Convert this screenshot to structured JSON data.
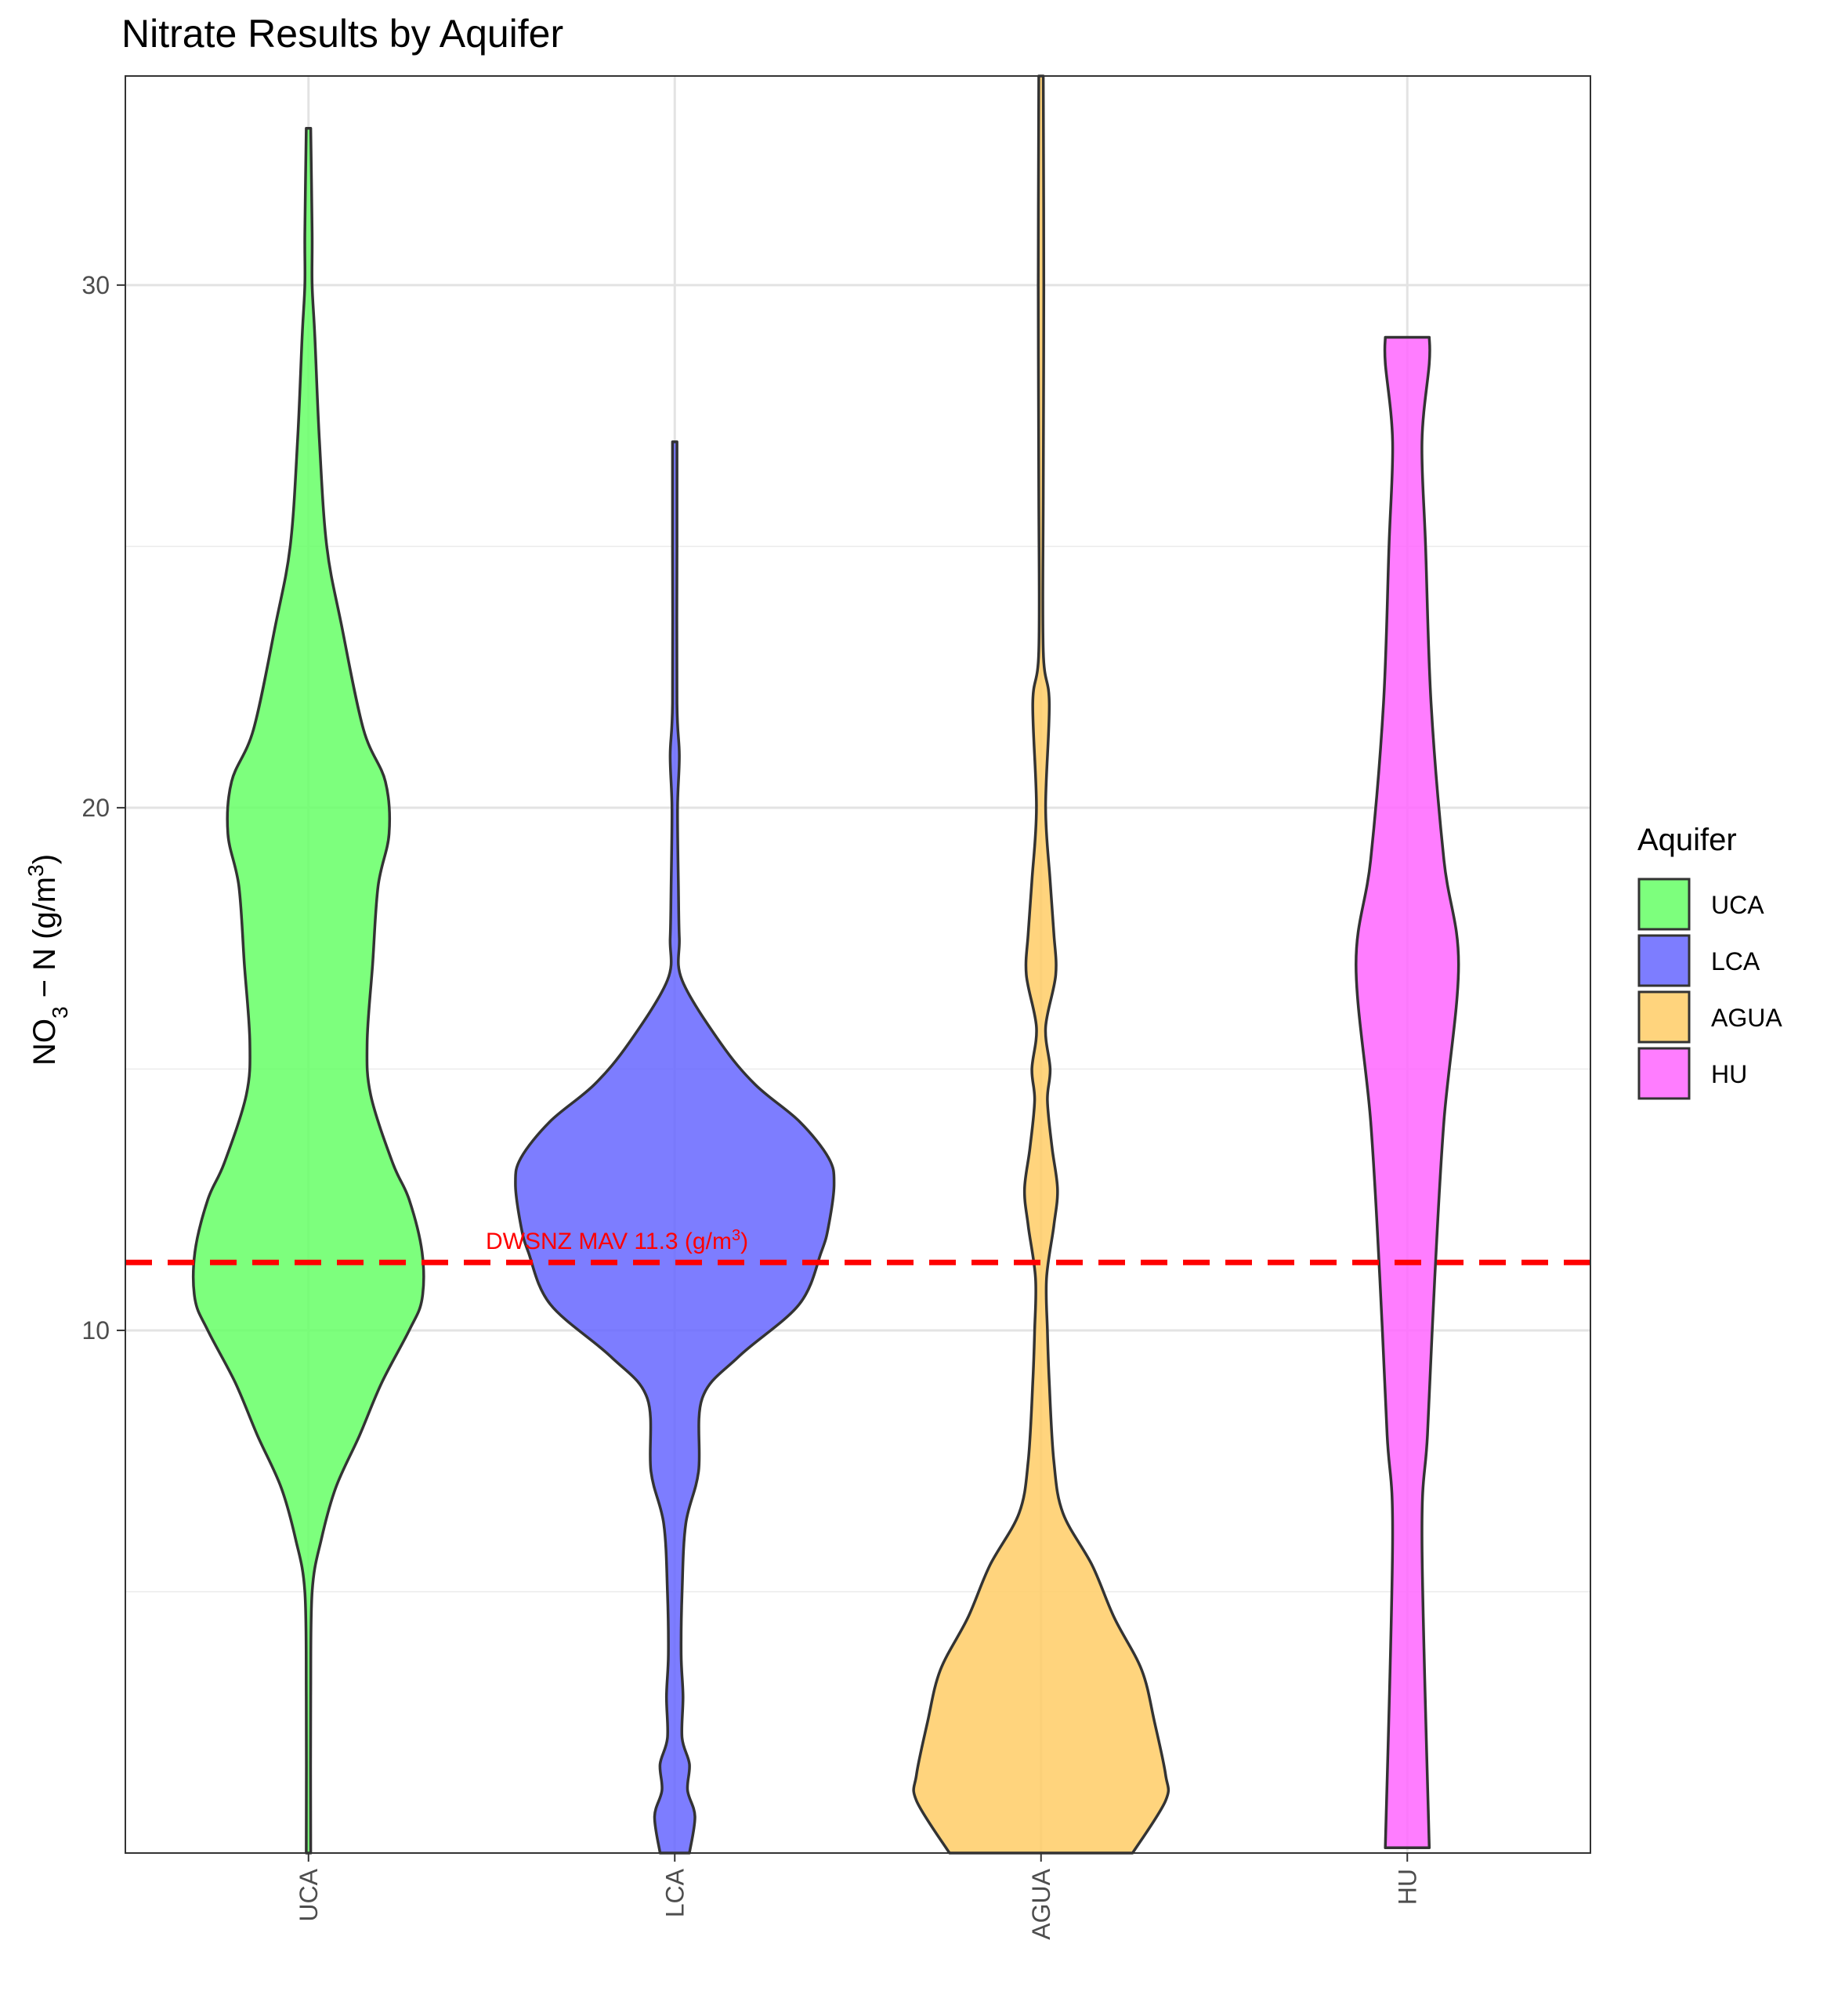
{
  "chart_data": {
    "type": "violin",
    "title": "Nitrate Results by Aquifer",
    "xlabel": "",
    "ylabel_main": "NO",
    "ylabel_sub": "3",
    "ylabel_mid": " − N (g/m",
    "ylabel_sup": "3",
    "ylabel_end": ")",
    "ylim": [
      0,
      34
    ],
    "yticks": [
      10,
      20,
      30
    ],
    "grid": true,
    "categories": [
      "UCA",
      "LCA",
      "AGUA",
      "HU"
    ],
    "series": [
      {
        "name": "UCA",
        "color": "#66ff66",
        "profile": [
          [
            0,
            0.012
          ],
          [
            3,
            0.012
          ],
          [
            5,
            0.02
          ],
          [
            6,
            0.07
          ],
          [
            7,
            0.15
          ],
          [
            8,
            0.28
          ],
          [
            9,
            0.4
          ],
          [
            10,
            0.55
          ],
          [
            10.6,
            0.62
          ],
          [
            11.5,
            0.62
          ],
          [
            12.5,
            0.55
          ],
          [
            13.2,
            0.46
          ],
          [
            14.5,
            0.34
          ],
          [
            15.5,
            0.32
          ],
          [
            17,
            0.35
          ],
          [
            18.5,
            0.38
          ],
          [
            19.5,
            0.44
          ],
          [
            20.5,
            0.42
          ],
          [
            21.5,
            0.3
          ],
          [
            23.5,
            0.18
          ],
          [
            25,
            0.1
          ],
          [
            27,
            0.06
          ],
          [
            29,
            0.035
          ],
          [
            30,
            0.02
          ],
          [
            31,
            0.02
          ],
          [
            33,
            0.012
          ]
        ]
      },
      {
        "name": "LCA",
        "color": "#6666ff",
        "profile": [
          [
            0,
            0.08
          ],
          [
            0.7,
            0.11
          ],
          [
            1.2,
            0.07
          ],
          [
            1.7,
            0.08
          ],
          [
            2.2,
            0.04
          ],
          [
            3.0,
            0.045
          ],
          [
            3.8,
            0.035
          ],
          [
            5,
            0.04
          ],
          [
            6.3,
            0.06
          ],
          [
            7.3,
            0.13
          ],
          [
            8.7,
            0.15
          ],
          [
            9.5,
            0.35
          ],
          [
            10.5,
            0.68
          ],
          [
            11.5,
            0.8
          ],
          [
            12.0,
            0.84
          ],
          [
            12.8,
            0.87
          ],
          [
            13.3,
            0.84
          ],
          [
            14,
            0.68
          ],
          [
            14.7,
            0.44
          ],
          [
            15.5,
            0.25
          ],
          [
            16.7,
            0.04
          ],
          [
            17.5,
            0.025
          ],
          [
            18.5,
            0.02
          ],
          [
            20,
            0.015
          ],
          [
            21,
            0.025
          ],
          [
            22,
            0.012
          ],
          [
            25,
            0.012
          ],
          [
            27,
            0.012
          ]
        ]
      },
      {
        "name": "AGUA",
        "color": "#ffcc66",
        "profile": [
          [
            0,
            0.5
          ],
          [
            1,
            0.68
          ],
          [
            1.5,
            0.68
          ],
          [
            2.5,
            0.62
          ],
          [
            3.5,
            0.55
          ],
          [
            4.5,
            0.4
          ],
          [
            5.5,
            0.28
          ],
          [
            6.5,
            0.12
          ],
          [
            7.5,
            0.07
          ],
          [
            9,
            0.045
          ],
          [
            10,
            0.035
          ],
          [
            11,
            0.03
          ],
          [
            12,
            0.07
          ],
          [
            12.7,
            0.09
          ],
          [
            13.5,
            0.06
          ],
          [
            14.4,
            0.035
          ],
          [
            15,
            0.05
          ],
          [
            15.8,
            0.025
          ],
          [
            16.8,
            0.08
          ],
          [
            17.6,
            0.07
          ],
          [
            18.6,
            0.05
          ],
          [
            20,
            0.025
          ],
          [
            22,
            0.045
          ],
          [
            23,
            0.012
          ],
          [
            26,
            0.012
          ],
          [
            30,
            0.015
          ],
          [
            34,
            0.012
          ]
        ]
      },
      {
        "name": "HU",
        "color": "#ff66ff",
        "profile": [
          [
            0.1,
            0.12
          ],
          [
            6,
            0.08
          ],
          [
            8,
            0.11
          ],
          [
            11,
            0.15
          ],
          [
            14,
            0.2
          ],
          [
            17,
            0.28
          ],
          [
            19,
            0.2
          ],
          [
            22,
            0.13
          ],
          [
            25,
            0.1
          ],
          [
            27,
            0.08
          ],
          [
            28.5,
            0.12
          ],
          [
            29,
            0.12
          ]
        ]
      }
    ],
    "reference_line": {
      "value": 11.3,
      "label_main": "DWSNZ MAV 11.3 (g/m",
      "label_sup": "3",
      "label_end": ")",
      "color": "#ff0000"
    },
    "legend": {
      "title": "Aquifer",
      "position": "right",
      "items": [
        "UCA",
        "LCA",
        "AGUA",
        "HU"
      ]
    }
  }
}
